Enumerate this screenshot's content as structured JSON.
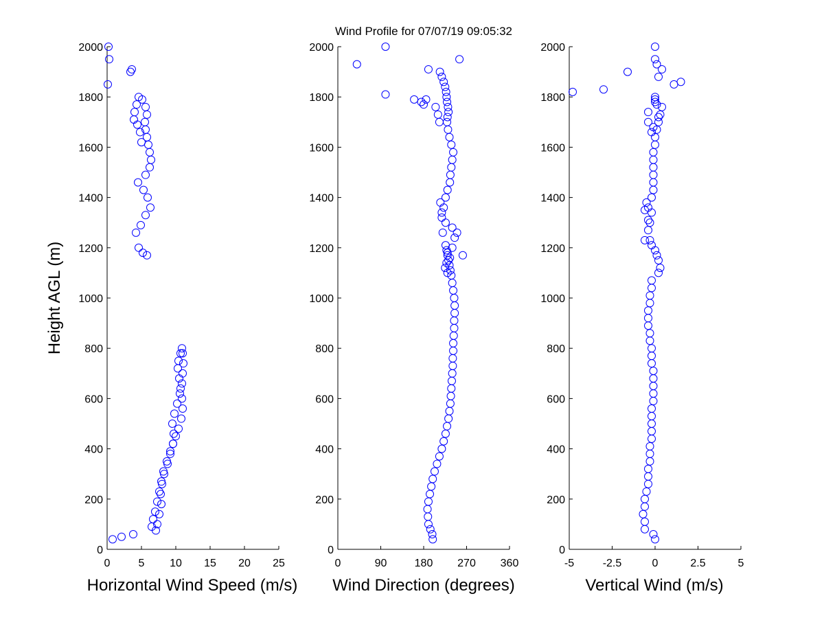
{
  "figure": {
    "title": "Wind Profile for  07/07/19 09:05:32",
    "ylabel": "Height AGL (m)"
  },
  "chart_data": [
    {
      "type": "scatter",
      "xlabel": "Horizontal Wind Speed (m/s)",
      "ylabel": "Height AGL (m)",
      "xlim": [
        0,
        25
      ],
      "ylim": [
        0,
        2000
      ],
      "xticks": [
        0,
        5,
        10,
        15,
        20,
        25
      ],
      "xtick_labels": [
        "0",
        "5",
        "10",
        "15",
        "20",
        "25"
      ],
      "yticks": [
        0,
        200,
        400,
        600,
        800,
        1000,
        1200,
        1400,
        1600,
        1800,
        2000
      ],
      "ytick_labels": [
        "0",
        "200",
        "400",
        "600",
        "800",
        "1000",
        "1200",
        "1400",
        "1600",
        "1800",
        "2000"
      ],
      "x": [
        0.8,
        2.1,
        3.8,
        7.1,
        7.3,
        7.6,
        7.9,
        7.8,
        8.0,
        8.3,
        8.8,
        9.2,
        9.6,
        9.7,
        9.5,
        9.8,
        10.2,
        10.6,
        10.9,
        11.0,
        11.1,
        11.0,
        10.9,
        10.7,
        10.4,
        10.3,
        10.5,
        10.7,
        10.9,
        11.0,
        10.8,
        10.4,
        10.0,
        9.6,
        9.2,
        8.7,
        8.2,
        7.9,
        7.6,
        7.3,
        7.0,
        6.7,
        6.5,
        5.8,
        5.2,
        4.6,
        4.2,
        4.9,
        5.6,
        6.3,
        5.9,
        5.3,
        4.5,
        5.6,
        6.2,
        6.4,
        6.2,
        6.0,
        5.8,
        5.6,
        5.5,
        5.8,
        5.6,
        5.1,
        4.6,
        4.3,
        4.0,
        3.9,
        4.4,
        4.8,
        5.0,
        3.4,
        3.6,
        0.1,
        0.3,
        0.2
      ],
      "y": [
        40,
        50,
        60,
        75,
        100,
        140,
        180,
        220,
        260,
        300,
        340,
        380,
        420,
        460,
        500,
        540,
        580,
        620,
        660,
        700,
        740,
        780,
        800,
        780,
        750,
        720,
        680,
        640,
        600,
        560,
        520,
        480,
        450,
        420,
        390,
        350,
        310,
        270,
        230,
        190,
        150,
        120,
        90,
        1170,
        1180,
        1200,
        1260,
        1290,
        1330,
        1360,
        1400,
        1430,
        1460,
        1490,
        1520,
        1550,
        1580,
        1610,
        1640,
        1670,
        1700,
        1730,
        1760,
        1790,
        1800,
        1770,
        1740,
        1710,
        1690,
        1660,
        1620,
        1900,
        1910,
        1850,
        1950,
        2000
      ]
    },
    {
      "type": "scatter",
      "xlabel": "Wind Direction (degrees)",
      "ylabel": "",
      "xlim": [
        0,
        360
      ],
      "ylim": [
        0,
        2000
      ],
      "xticks": [
        0,
        90,
        180,
        270,
        360
      ],
      "xtick_labels": [
        "0",
        "90",
        "180",
        "270",
        "360"
      ],
      "yticks": [
        0,
        200,
        400,
        600,
        800,
        1000,
        1200,
        1400,
        1600,
        1800,
        2000
      ],
      "ytick_labels": [
        "0",
        "200",
        "400",
        "600",
        "800",
        "1000",
        "1200",
        "1400",
        "1600",
        "1800",
        "2000"
      ],
      "x": [
        199,
        198,
        194,
        190,
        189,
        188,
        190,
        193,
        196,
        199,
        203,
        208,
        213,
        218,
        222,
        226,
        229,
        232,
        234,
        236,
        237,
        238,
        239,
        240,
        241,
        241,
        242,
        242,
        243,
        244,
        244,
        245,
        245,
        244,
        242,
        240,
        238,
        236,
        234,
        232,
        230,
        228,
        226,
        220,
        215,
        218,
        222,
        226,
        230,
        235,
        236,
        238,
        240,
        242,
        238,
        234,
        231,
        229,
        230,
        232,
        231,
        229,
        228,
        227,
        225,
        222,
        218,
        214,
        213,
        210,
        240,
        245,
        240,
        250,
        262,
        230,
        225,
        228,
        235,
        230,
        226,
        218,
        180,
        185,
        205,
        175,
        160,
        190,
        100,
        40,
        100,
        255
      ],
      "y": [
        40,
        60,
        80,
        100,
        130,
        160,
        190,
        220,
        250,
        280,
        310,
        340,
        370,
        400,
        430,
        460,
        490,
        520,
        550,
        580,
        610,
        640,
        670,
        700,
        730,
        760,
        790,
        820,
        850,
        880,
        910,
        940,
        970,
        1000,
        1030,
        1060,
        1090,
        1110,
        1130,
        1150,
        1170,
        1190,
        1210,
        1260,
        1380,
        1340,
        1360,
        1400,
        1430,
        1460,
        1490,
        1520,
        1550,
        1580,
        1610,
        1640,
        1670,
        1700,
        1720,
        1740,
        1760,
        1780,
        1800,
        1820,
        1840,
        1860,
        1880,
        1900,
        1700,
        1730,
        1200,
        1240,
        1280,
        1260,
        1170,
        1100,
        1120,
        1140,
        1160,
        1180,
        1300,
        1320,
        1770,
        1790,
        1760,
        1780,
        1790,
        1910,
        1810,
        1930,
        2000,
        1950
      ]
    },
    {
      "type": "scatter",
      "xlabel": "Vertical Wind (m/s)",
      "ylabel": "",
      "xlim": [
        -5,
        5
      ],
      "ylim": [
        0,
        2000
      ],
      "xticks": [
        -5,
        -2.5,
        0,
        2.5,
        5
      ],
      "xtick_labels": [
        "-5",
        "-2.5",
        "0",
        "2.5",
        "5"
      ],
      "yticks": [
        0,
        200,
        400,
        600,
        800,
        1000,
        1200,
        1400,
        1600,
        1800,
        2000
      ],
      "ytick_labels": [
        "0",
        "200",
        "400",
        "600",
        "800",
        "1000",
        "1200",
        "1400",
        "1600",
        "1800",
        "2000"
      ],
      "x": [
        0.0,
        -0.1,
        -0.6,
        -0.6,
        -0.7,
        -0.6,
        -0.6,
        -0.5,
        -0.4,
        -0.4,
        -0.4,
        -0.3,
        -0.3,
        -0.3,
        -0.2,
        -0.2,
        -0.2,
        -0.2,
        -0.2,
        -0.1,
        -0.1,
        -0.1,
        -0.1,
        -0.1,
        -0.2,
        -0.2,
        -0.2,
        -0.3,
        -0.3,
        -0.4,
        -0.4,
        -0.4,
        -0.3,
        -0.3,
        -0.2,
        -0.2,
        0.2,
        0.3,
        0.2,
        0.1,
        0.0,
        -0.2,
        -0.3,
        -0.6,
        -0.4,
        -0.3,
        -0.2,
        -0.4,
        -0.5,
        -0.6,
        -0.4,
        -0.2,
        -0.1,
        -0.1,
        -0.1,
        -0.1,
        -0.1,
        -0.1,
        0.0,
        0.0,
        0.1,
        0.2,
        0.4,
        0.3,
        0.2,
        0.0,
        0.0,
        -0.1,
        -0.2,
        -0.4,
        -0.4,
        0.0,
        0.1,
        -1.6,
        -4.8,
        -3.0,
        1.1,
        1.5,
        0.4,
        0.0,
        0.0,
        0.2,
        0.1
      ],
      "y": [
        40,
        60,
        80,
        110,
        140,
        170,
        200,
        230,
        260,
        290,
        320,
        350,
        380,
        410,
        440,
        470,
        500,
        530,
        560,
        590,
        620,
        650,
        680,
        710,
        740,
        770,
        800,
        830,
        860,
        890,
        920,
        950,
        980,
        1010,
        1040,
        1070,
        1100,
        1120,
        1150,
        1170,
        1190,
        1210,
        1230,
        1230,
        1270,
        1300,
        1340,
        1360,
        1380,
        1350,
        1310,
        1400,
        1430,
        1460,
        1490,
        1520,
        1550,
        1580,
        1610,
        1640,
        1670,
        1700,
        1760,
        1730,
        1720,
        1790,
        1800,
        1680,
        1660,
        1700,
        1740,
        1780,
        1770,
        1900,
        1820,
        1830,
        1850,
        1860,
        1910,
        1950,
        2000,
        1880,
        1930
      ]
    }
  ]
}
